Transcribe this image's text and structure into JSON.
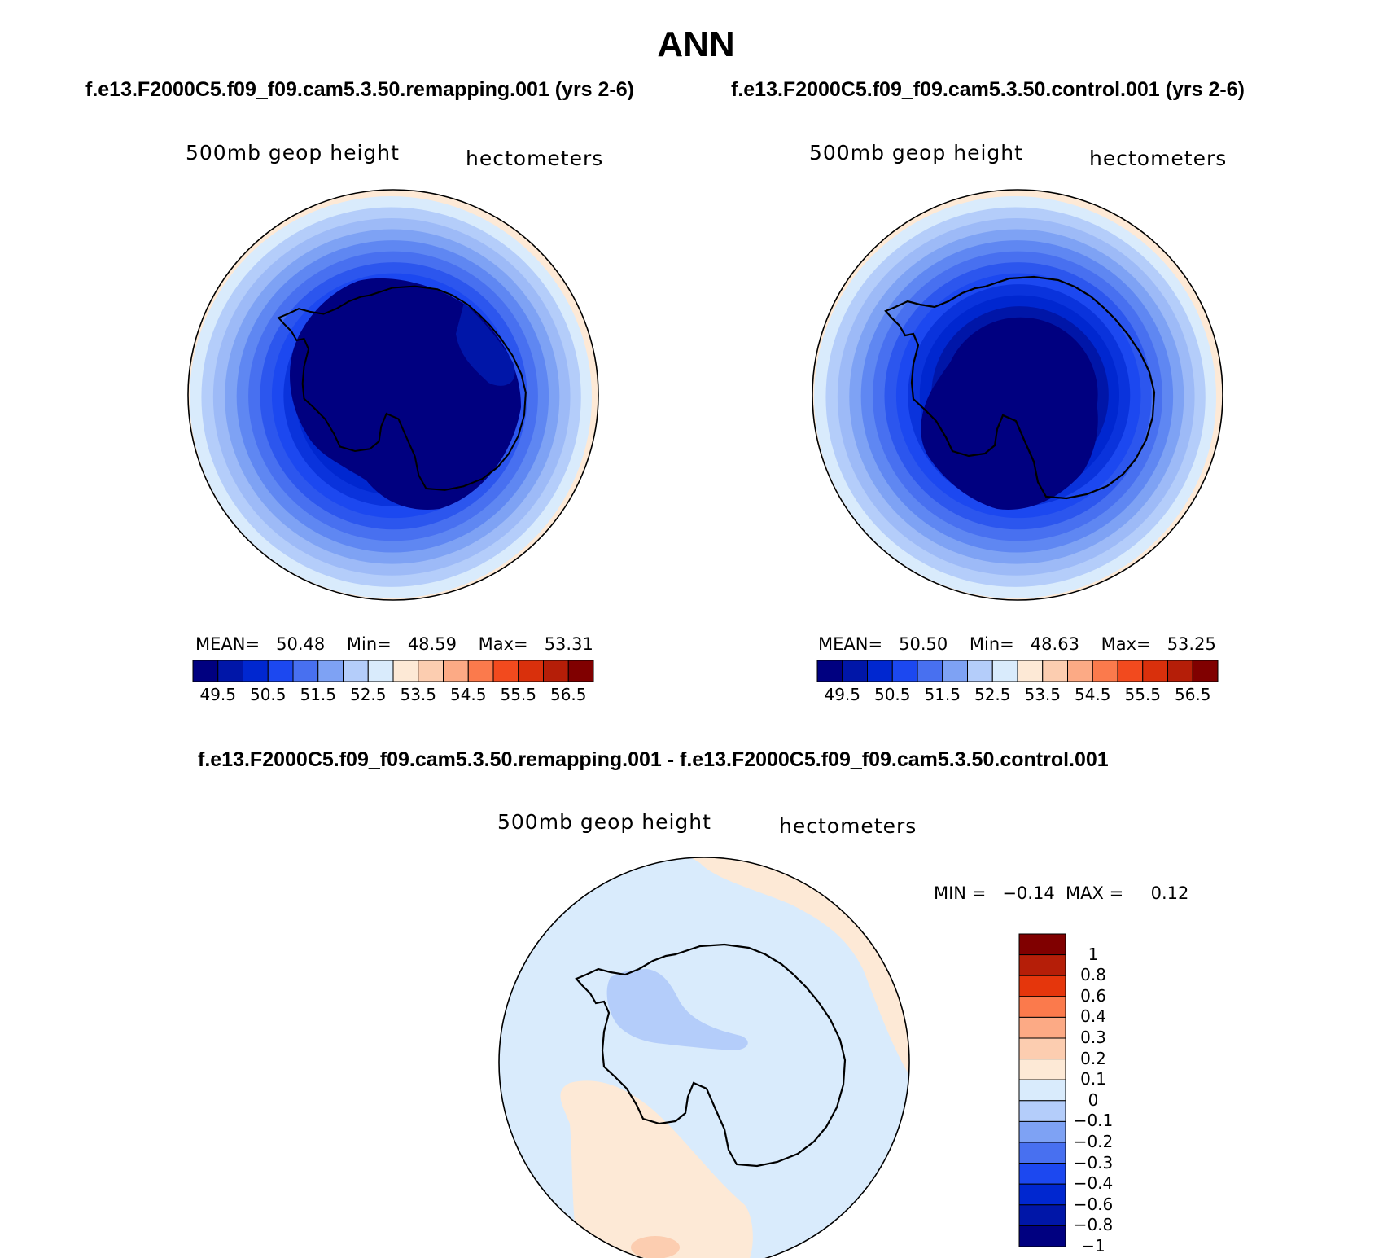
{
  "title": "ANN",
  "panels": [
    {
      "case": "f.e13.F2000C5.f09_f09.cam5.3.50.remapping.001 (yrs 2-6)",
      "variable": "500mb geop height",
      "units": "hectometers",
      "stats": {
        "mean_label": "MEAN=",
        "mean": "50.48",
        "min_label": "Min=",
        "min": "48.59",
        "max_label": "Max=",
        "max": "53.31"
      }
    },
    {
      "case": "f.e13.F2000C5.f09_f09.cam5.3.50.control.001 (yrs 2-6)",
      "variable": "500mb geop height",
      "units": "hectometers",
      "stats": {
        "mean_label": "MEAN=",
        "mean": "50.50",
        "min_label": "Min=",
        "min": "48.63",
        "max_label": "Max=",
        "max": "53.25"
      }
    }
  ],
  "difference": {
    "case": "f.e13.F2000C5.f09_f09.cam5.3.50.remapping.001 - f.e13.F2000C5.f09_f09.cam5.3.50.control.001",
    "variable": "500mb geop height",
    "units": "hectometers",
    "stats": {
      "min_label": "MIN =",
      "min": "−0.14",
      "max_label": "MAX =",
      "max": "0.12"
    }
  },
  "colorbar_field": {
    "colors": [
      "#000080",
      "#0016a8",
      "#0027d0",
      "#1c48f0",
      "#4870f0",
      "#7ea2f4",
      "#b4cdfa",
      "#d9ebfc",
      "#fde9d6",
      "#fccdb0",
      "#fcaa85",
      "#fb7a4c",
      "#f24a1e",
      "#d9300c",
      "#b51e08",
      "#800000"
    ],
    "tick_labels": [
      "49.5",
      "50.5",
      "51.5",
      "52.5",
      "53.5",
      "54.5",
      "55.5",
      "56.5"
    ]
  },
  "colorbar_diff": {
    "colors": [
      "#800000",
      "#b51e08",
      "#e5360c",
      "#fb7a4c",
      "#fcaa85",
      "#fccdb0",
      "#fde9d6",
      "#d9ebfc",
      "#b4cdfa",
      "#7ea2f4",
      "#4870f0",
      "#1c48f0",
      "#0027d0",
      "#0016a8",
      "#000080"
    ],
    "tick_labels": [
      "1",
      "0.8",
      "0.6",
      "0.4",
      "0.3",
      "0.2",
      "0.1",
      "0",
      "−0.1",
      "−0.2",
      "−0.3",
      "−0.4",
      "−0.6",
      "−0.8",
      "−1"
    ]
  },
  "map_colors": {
    "field_rings": [
      "#d9ebfc",
      "#b4cdfa",
      "#9dbaf7",
      "#7ea2f4",
      "#5f87f2",
      "#4870f0",
      "#2c56ee",
      "#1c48f0",
      "#0a33dc",
      "#0027d0",
      "#0016a8",
      "#000080"
    ],
    "field_outer": "#fde9d6",
    "diff_bg": "#d9ebfc",
    "diff_pos": "#fde9d6",
    "diff_pos2": "#fccdb0",
    "diff_neg": "#b4cdfa"
  }
}
